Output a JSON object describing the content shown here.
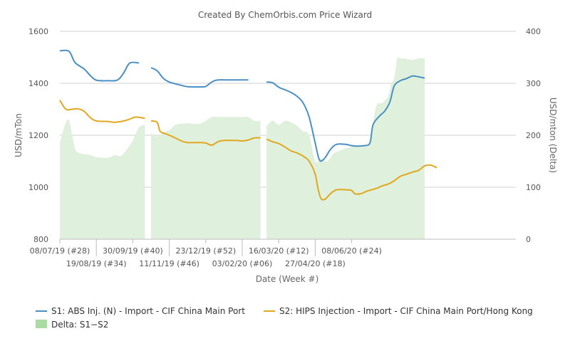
{
  "chart_data": {
    "type": "line",
    "title": "Created By ChemOrbis.com Price Wizard",
    "xlabel": "Date (Week #)",
    "ylabel_left": "USD/mTon",
    "ylabel_right": "USD/mton (Delta)",
    "ylim_left": [
      800,
      1600
    ],
    "ylim_right": [
      0,
      400
    ],
    "yticks_left": [
      "800",
      "1000",
      "1200",
      "1400",
      "1600"
    ],
    "yticks_right": [
      "0",
      "100",
      "200",
      "300",
      "400"
    ],
    "x_range": [
      28,
      103
    ],
    "x_ticks": [
      {
        "week": 28,
        "label": "08/07/19 (#28)",
        "row": 1
      },
      {
        "week": 34,
        "label": "19/08/19 (#34)",
        "row": 2
      },
      {
        "week": 40,
        "label": "30/09/19 (#40)",
        "row": 1
      },
      {
        "week": 46,
        "label": "11/11/19 (#46)",
        "row": 2
      },
      {
        "week": 52,
        "label": "23/12/19 (#52)",
        "row": 1
      },
      {
        "week": 58,
        "label": "03/02/20 (#06)",
        "row": 2
      },
      {
        "week": 64,
        "label": "16/03/20 (#12)",
        "row": 1
      },
      {
        "week": 70,
        "label": "27/04/20 (#18)",
        "row": 2
      },
      {
        "week": 76,
        "label": "08/06/20 (#24)",
        "row": 1
      }
    ],
    "grid": true,
    "legend_position": "bottom",
    "series": [
      {
        "name": "S1: ABS Inj. (N) - Import - CIF China Main Port",
        "color": "#4a90c4",
        "axis": "left",
        "segments": [
          [
            [
              28,
              1525
            ],
            [
              29.5,
              1523
            ],
            [
              30.5,
              1480
            ],
            [
              32,
              1455
            ],
            [
              33,
              1430
            ],
            [
              34,
              1412
            ],
            [
              36,
              1410
            ],
            [
              37.5,
              1413
            ],
            [
              38.5,
              1440
            ],
            [
              39.5,
              1478
            ],
            [
              41,
              1478
            ]
          ],
          [
            [
              43,
              1460
            ],
            [
              44,
              1448
            ],
            [
              45,
              1420
            ],
            [
              46,
              1405
            ],
            [
              48,
              1392
            ],
            [
              49,
              1387
            ],
            [
              51,
              1386
            ],
            [
              52,
              1388
            ],
            [
              53,
              1405
            ],
            [
              54,
              1413
            ],
            [
              56,
              1413
            ],
            [
              58,
              1413
            ],
            [
              59,
              1413
            ]
          ],
          [
            [
              62,
              1405
            ],
            [
              63,
              1402
            ],
            [
              64,
              1385
            ],
            [
              65,
              1375
            ],
            [
              66,
              1365
            ],
            [
              67,
              1350
            ],
            [
              68,
              1325
            ],
            [
              69,
              1270
            ],
            [
              70,
              1170
            ],
            [
              70.7,
              1105
            ],
            [
              71.5,
              1110
            ],
            [
              72.5,
              1145
            ],
            [
              73.5,
              1165
            ],
            [
              75,
              1165
            ],
            [
              76,
              1160
            ],
            [
              77,
              1158
            ],
            [
              78,
              1160
            ],
            [
              79,
              1170
            ],
            [
              79.5,
              1240
            ],
            [
              80.5,
              1272
            ],
            [
              81.5,
              1295
            ],
            [
              82.3,
              1330
            ],
            [
              83,
              1390
            ],
            [
              84,
              1410
            ],
            [
              85,
              1418
            ],
            [
              86,
              1428
            ],
            [
              87,
              1425
            ],
            [
              88,
              1420
            ]
          ]
        ]
      },
      {
        "name": "S2: HIPS Injection - Import - CIF China Main Port/Hong Kong",
        "color": "#e0a820",
        "axis": "left",
        "segments": [
          [
            [
              28,
              1335
            ],
            [
              29,
              1300
            ],
            [
              30,
              1300
            ],
            [
              31,
              1302
            ],
            [
              32,
              1292
            ],
            [
              33,
              1268
            ],
            [
              34,
              1255
            ],
            [
              36,
              1253
            ],
            [
              37,
              1250
            ],
            [
              38.5,
              1255
            ],
            [
              39.5,
              1262
            ],
            [
              40.5,
              1270
            ],
            [
              42,
              1265
            ]
          ],
          [
            [
              43,
              1255
            ],
            [
              44,
              1250
            ],
            [
              44.5,
              1215
            ],
            [
              45.5,
              1205
            ],
            [
              46.5,
              1195
            ],
            [
              48,
              1178
            ],
            [
              49,
              1172
            ],
            [
              51,
              1172
            ],
            [
              52,
              1170
            ],
            [
              53,
              1162
            ],
            [
              54,
              1175
            ],
            [
              55,
              1180
            ],
            [
              57,
              1180
            ],
            [
              58,
              1178
            ],
            [
              59,
              1182
            ],
            [
              60,
              1190
            ],
            [
              61,
              1190
            ]
          ],
          [
            [
              62,
              1185
            ],
            [
              63,
              1175
            ],
            [
              64,
              1168
            ],
            [
              65,
              1155
            ],
            [
              66,
              1140
            ],
            [
              67,
              1132
            ],
            [
              68,
              1120
            ],
            [
              69,
              1100
            ],
            [
              70,
              1050
            ],
            [
              70.5,
              990
            ],
            [
              71,
              955
            ],
            [
              71.7,
              955
            ],
            [
              72.5,
              975
            ],
            [
              73.5,
              990
            ],
            [
              75,
              990
            ],
            [
              76,
              988
            ],
            [
              76.5,
              975
            ],
            [
              77.5,
              975
            ],
            [
              78.5,
              985
            ],
            [
              80,
              995
            ],
            [
              81,
              1005
            ],
            [
              82,
              1012
            ],
            [
              83,
              1025
            ],
            [
              84,
              1042
            ],
            [
              85,
              1050
            ],
            [
              86,
              1058
            ],
            [
              87,
              1065
            ],
            [
              88,
              1082
            ],
            [
              89,
              1085
            ],
            [
              90,
              1075
            ]
          ]
        ]
      },
      {
        "name": "Delta: S1−S2",
        "color": "#a8dca0",
        "fill": "#dff0dc",
        "axis": "right",
        "type": "area",
        "segments": [
          [
            [
              28,
              185
            ],
            [
              29,
              225
            ],
            [
              29.6,
              225
            ],
            [
              30.5,
              175
            ],
            [
              31.5,
              165
            ],
            [
              33,
              162
            ],
            [
              34,
              158
            ],
            [
              36,
              157
            ],
            [
              37,
              162
            ],
            [
              38,
              160
            ],
            [
              39,
              172
            ],
            [
              40,
              190
            ],
            [
              41,
              215
            ],
            [
              42,
              220
            ]
          ],
          [
            [
              43,
              205
            ],
            [
              44,
              198
            ],
            [
              45,
              205
            ],
            [
              46,
              210
            ],
            [
              47,
              220
            ],
            [
              48,
              222
            ],
            [
              49,
              223
            ],
            [
              51,
              222
            ],
            [
              52,
              228
            ],
            [
              53,
              235
            ],
            [
              54,
              235
            ],
            [
              56,
              235
            ],
            [
              57,
              235
            ],
            [
              58,
              235
            ],
            [
              59,
              235
            ],
            [
              60,
              228
            ],
            [
              61,
              228
            ]
          ],
          [
            [
              62,
              218
            ],
            [
              63,
              228
            ],
            [
              64,
              220
            ],
            [
              65,
              228
            ],
            [
              66,
              225
            ],
            [
              67,
              218
            ],
            [
              68,
              208
            ],
            [
              69,
              200
            ],
            [
              70,
              150
            ],
            [
              71,
              155
            ],
            [
              72,
              150
            ],
            [
              73,
              165
            ],
            [
              74,
              170
            ],
            [
              75,
              175
            ],
            [
              76,
              178
            ],
            [
              77,
              180
            ],
            [
              78,
              180
            ],
            [
              79,
              185
            ],
            [
              80,
              255
            ],
            [
              81,
              262
            ],
            [
              82,
              275
            ],
            [
              82.5,
              300
            ],
            [
              83,
              310
            ],
            [
              83.5,
              348
            ],
            [
              84,
              348
            ],
            [
              85,
              347
            ],
            [
              86,
              345
            ],
            [
              87,
              348
            ],
            [
              88,
              348
            ]
          ]
        ]
      }
    ]
  }
}
